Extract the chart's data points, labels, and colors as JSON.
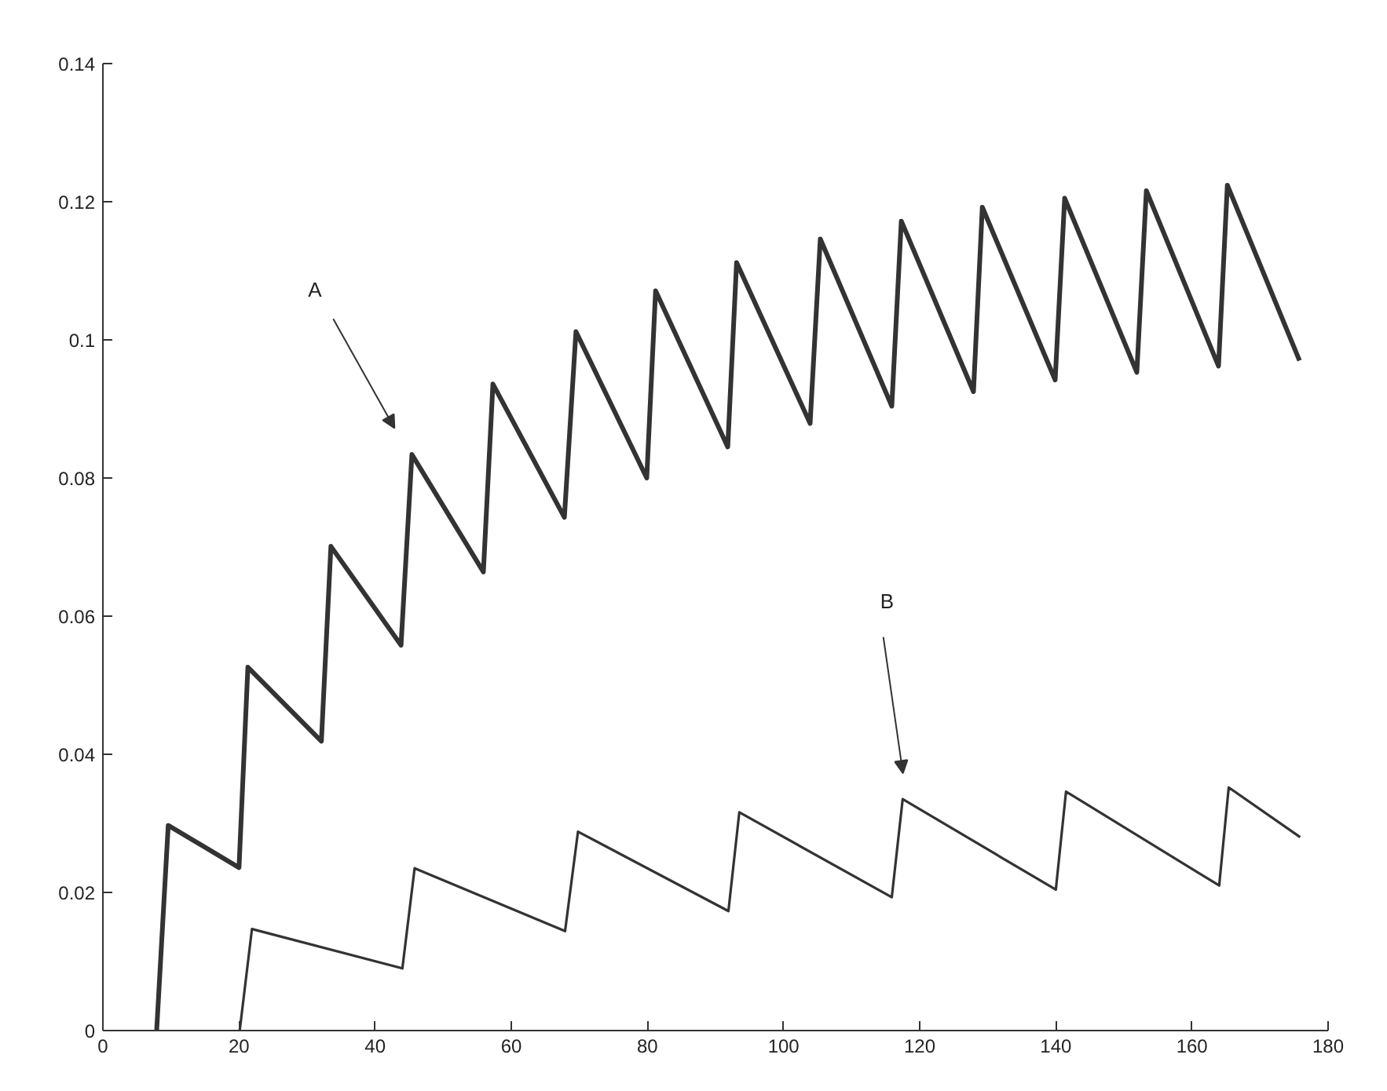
{
  "chart_data": {
    "type": "line",
    "xlim": [
      0,
      180
    ],
    "ylim": [
      0,
      0.14
    ],
    "xticks": [
      0,
      20,
      40,
      60,
      80,
      100,
      120,
      140,
      160,
      180
    ],
    "yticks": [
      0,
      0.02,
      0.04,
      0.06,
      0.08,
      0.1,
      0.12,
      0.14
    ],
    "grid": false,
    "marker": "none",
    "line_style": "solid",
    "series": [
      {
        "color": "#333333",
        "x": [
          7.9,
          9.6,
          20.0,
          21.3,
          32.1,
          33.5,
          43.8,
          45.4,
          55.9,
          57.3,
          67.8,
          69.5,
          79.9,
          81.2,
          91.8,
          93.1,
          103.9,
          105.4,
          115.9,
          117.3,
          127.9,
          129.2,
          139.9,
          141.3,
          151.9,
          153.3,
          163.9,
          165.2,
          175.8
        ],
        "values": [
          0,
          0.0297,
          0.0236,
          0.0526,
          0.0419,
          0.0701,
          0.0558,
          0.0834,
          0.0664,
          0.0936,
          0.0743,
          0.1012,
          0.08,
          0.1071,
          0.0845,
          0.1112,
          0.0879,
          0.1146,
          0.0904,
          0.1172,
          0.0925,
          0.1192,
          0.0942,
          0.1205,
          0.0953,
          0.1216,
          0.0962,
          0.1224,
          0.097
        ]
      },
      {
        "color": "#333333",
        "x": [
          20.1,
          21.9,
          44.0,
          45.8,
          67.9,
          69.8,
          91.9,
          93.5,
          115.9,
          117.5,
          140.0,
          141.5,
          164.0,
          165.4,
          175.9
        ],
        "values": [
          0,
          0.0147,
          0.009,
          0.0235,
          0.0144,
          0.0288,
          0.0173,
          0.0316,
          0.0193,
          0.0335,
          0.0204,
          0.0346,
          0.021,
          0.0352,
          0.028
        ]
      }
    ],
    "annotations": [
      "A",
      "B"
    ]
  }
}
